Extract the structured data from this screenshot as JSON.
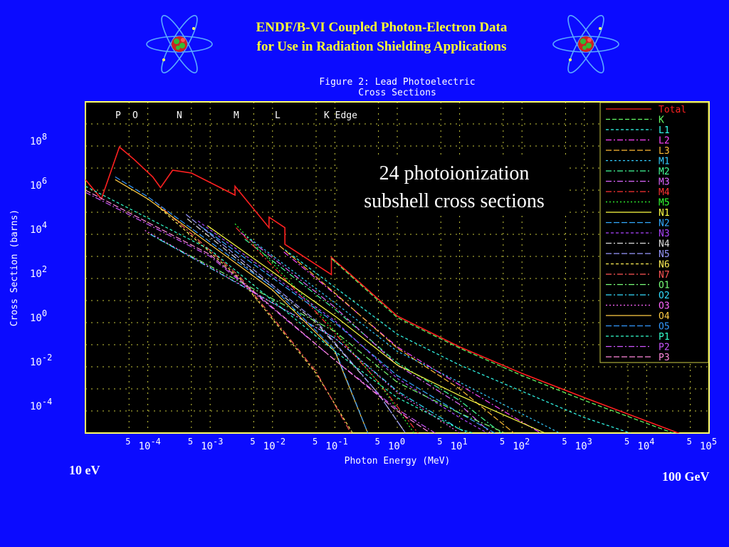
{
  "slide": {
    "title_line1": "ENDF/B-VI Coupled Photon-Electron Data",
    "title_line2": "for Use in Radiation Shielding Applications",
    "low_energy_label": "10 eV",
    "high_energy_label": "100 GeV",
    "annotation_line1": "24 photoionization",
    "annotation_line2": "subshell cross sections",
    "left_icon": "atom-icon",
    "right_icon": "atom-icon"
  },
  "colors": {
    "background": "#0b0bff",
    "plot_background": "#000000",
    "frame": "#ffff66",
    "title_text": "#ffff33",
    "chart_text": "#ffffff"
  },
  "chart_data": {
    "type": "line",
    "title_line1": "Figure 2: Lead Photoelectric",
    "title_line2": "Cross Sections",
    "xlabel": "Photon Energy (MeV)",
    "ylabel": "Cross Section (barns)",
    "x_scale": "log",
    "y_scale": "log",
    "xlim": [
      1e-05,
      100000
    ],
    "ylim": [
      1e-05,
      10000000000
    ],
    "x_tick_labels": [
      "10-4",
      "10-3",
      "10-2",
      "10-1",
      "100",
      "101",
      "102",
      "103",
      "104",
      "105"
    ],
    "x_minor_label": "5",
    "y_tick_labels": [
      "108",
      "106",
      "104",
      "102",
      "100",
      "10-2",
      "10-4"
    ],
    "grid": true,
    "legend_position": "top-right",
    "edge_labels": [
      "P",
      "O",
      "N",
      "M",
      "L",
      "K Edge"
    ],
    "series": [
      {
        "name": "Total",
        "color": "#ff2020",
        "dash": "solid",
        "points": [
          [
            1e-05,
            3000000
          ],
          [
            1.8e-05,
            400000
          ],
          [
            3.5e-05,
            90000000
          ],
          [
            6e-05,
            25000000
          ],
          [
            0.00012,
            4000000
          ],
          [
            0.00016,
            1300000
          ],
          [
            0.00025,
            8000000
          ],
          [
            0.0005,
            6000000
          ],
          [
            0.0025,
            600000
          ],
          [
            0.0025,
            1500000
          ],
          [
            0.0088,
            20000
          ],
          [
            0.0088,
            60000
          ],
          [
            0.0158,
            20000
          ],
          [
            0.0158,
            3500
          ],
          [
            0.088,
            150
          ],
          [
            0.088,
            900
          ],
          [
            1,
            2
          ],
          [
            10,
            0.08
          ],
          [
            100,
            0.005
          ],
          [
            1000,
            0.0004
          ],
          [
            100000,
            3e-06
          ]
        ]
      },
      {
        "name": "K",
        "color": "#66ff66",
        "dash": "6,3",
        "points": [
          [
            0.088,
            800
          ],
          [
            1,
            1.7
          ],
          [
            10,
            0.07
          ],
          [
            100,
            0.004
          ],
          [
            1000,
            0.0003
          ],
          [
            100000,
            2.5e-06
          ]
        ]
      },
      {
        "name": "L1",
        "color": "#33ffee",
        "dash": "4,3",
        "points": [
          [
            0.0158,
            2000
          ],
          [
            0.1,
            40
          ],
          [
            1,
            0.3
          ],
          [
            10,
            0.012
          ],
          [
            1000,
            5e-05
          ],
          [
            60000,
            1e-06
          ]
        ]
      },
      {
        "name": "L2",
        "color": "#ff44ff",
        "dash": "8,3,2,3",
        "points": [
          [
            0.0152,
            1600
          ],
          [
            0.1,
            20
          ],
          [
            1,
            0.08
          ],
          [
            10,
            0.0015
          ],
          [
            300,
            5e-06
          ]
        ]
      },
      {
        "name": "L3",
        "color": "#ffbb33",
        "dash": "8,3",
        "points": [
          [
            0.013,
            3000
          ],
          [
            0.1,
            22
          ],
          [
            1,
            0.07
          ],
          [
            10,
            0.001
          ],
          [
            150,
            2e-06
          ]
        ]
      },
      {
        "name": "M1",
        "color": "#33ccff",
        "dash": "3,3",
        "points": [
          [
            0.0039,
            8000
          ],
          [
            0.1,
            8
          ],
          [
            1,
            0.05
          ],
          [
            10,
            0.002
          ],
          [
            2000,
            1e-06
          ]
        ]
      },
      {
        "name": "M2",
        "color": "#44ff99",
        "dash": "8,3,2,3",
        "points": [
          [
            0.0036,
            6000
          ],
          [
            0.1,
            4
          ],
          [
            1,
            0.015
          ],
          [
            10,
            0.0003
          ],
          [
            80,
            3e-06
          ]
        ]
      },
      {
        "name": "M3",
        "color": "#dd66ff",
        "dash": "8,3,2,3",
        "points": [
          [
            0.0031,
            12000
          ],
          [
            0.1,
            5
          ],
          [
            1,
            0.012
          ],
          [
            10,
            0.0002
          ],
          [
            50,
            3e-06
          ]
        ]
      },
      {
        "name": "M4",
        "color": "#ff3333",
        "dash": "8,3,2,3",
        "points": [
          [
            0.0026,
            20000
          ],
          [
            0.05,
            3
          ],
          [
            0.5,
            0.002
          ],
          [
            3,
            3e-06
          ]
        ]
      },
      {
        "name": "M5",
        "color": "#33ff33",
        "dash": "2,3",
        "points": [
          [
            0.0025,
            30000
          ],
          [
            0.05,
            4
          ],
          [
            0.5,
            0.002
          ],
          [
            2.5,
            3e-06
          ]
        ]
      },
      {
        "name": "N1",
        "color": "#ffff44",
        "dash": "solid",
        "points": [
          [
            0.0009,
            25000
          ],
          [
            0.1,
            2
          ],
          [
            1,
            0.012
          ],
          [
            10,
            0.0005
          ],
          [
            1500,
            1e-06
          ]
        ]
      },
      {
        "name": "N2",
        "color": "#33aaff",
        "dash": "8,3",
        "points": [
          [
            0.00076,
            20000
          ],
          [
            0.1,
            1
          ],
          [
            1,
            0.004
          ],
          [
            10,
            8e-05
          ],
          [
            100,
            2e-06
          ]
        ]
      },
      {
        "name": "N3",
        "color": "#aa44ff",
        "dash": "4,3",
        "points": [
          [
            0.00064,
            40000
          ],
          [
            0.1,
            1.2
          ],
          [
            1,
            0.003
          ],
          [
            10,
            5e-05
          ],
          [
            60,
            3e-06
          ]
        ]
      },
      {
        "name": "N4",
        "color": "#dddddd",
        "dash": "8,3,2,3",
        "points": [
          [
            0.00043,
            50000
          ],
          [
            0.05,
            1
          ],
          [
            0.5,
            0.0006
          ],
          [
            2,
            2e-06
          ]
        ]
      },
      {
        "name": "N5",
        "color": "#9999ff",
        "dash": "8,3",
        "points": [
          [
            0.00041,
            80000
          ],
          [
            0.05,
            1.2
          ],
          [
            0.5,
            0.0006
          ],
          [
            2,
            2e-06
          ]
        ]
      },
      {
        "name": "N6",
        "color": "#ffee55",
        "dash": "4,3",
        "points": [
          [
            0.00014,
            200000
          ],
          [
            0.003,
            100
          ],
          [
            0.05,
            0.005
          ],
          [
            0.25,
            3e-06
          ]
        ]
      },
      {
        "name": "N7",
        "color": "#ff5555",
        "dash": "8,3,2,3",
        "points": [
          [
            0.00013,
            300000
          ],
          [
            0.003,
            120
          ],
          [
            0.05,
            0.006
          ],
          [
            0.23,
            3e-06
          ]
        ]
      },
      {
        "name": "O1",
        "color": "#77ff77",
        "dash": "8,3,2,3",
        "points": [
          [
            0.00015,
            6000
          ],
          [
            0.1,
            0.4
          ],
          [
            1,
            0.002
          ],
          [
            10,
            8e-05
          ],
          [
            200,
            2e-06
          ]
        ]
      },
      {
        "name": "O2",
        "color": "#33ddff",
        "dash": "8,3,2,3",
        "points": [
          [
            0.00011,
            10000
          ],
          [
            0.1,
            0.2
          ],
          [
            1,
            0.0008
          ],
          [
            10,
            1.5e-05
          ],
          [
            40,
            2e-06
          ]
        ]
      },
      {
        "name": "O3",
        "color": "#ff66ff",
        "dash": "2,3",
        "points": [
          [
            9e-05,
            15000
          ],
          [
            0.1,
            0.2
          ],
          [
            1,
            0.0007
          ],
          [
            10,
            1e-05
          ],
          [
            35,
            2e-06
          ]
        ]
      },
      {
        "name": "O4",
        "color": "#ffcc44",
        "dash": "solid",
        "points": [
          [
            3e-05,
            3000000
          ],
          [
            0.0001,
            400000
          ],
          [
            0.01,
            30
          ],
          [
            0.1,
            0.05
          ],
          [
            0.4,
            3e-06
          ]
        ]
      },
      {
        "name": "O5",
        "color": "#3399ff",
        "dash": "8,3",
        "points": [
          [
            3e-05,
            4000000
          ],
          [
            0.0001,
            500000
          ],
          [
            0.01,
            40
          ],
          [
            0.1,
            0.06
          ],
          [
            0.4,
            3e-06
          ]
        ]
      },
      {
        "name": "P1",
        "color": "#33ffcc",
        "dash": "4,3",
        "points": [
          [
            1e-05,
            1500000
          ],
          [
            0.001,
            2000
          ],
          [
            0.1,
            0.05
          ],
          [
            1,
            0.0004
          ],
          [
            10,
            1.5e-05
          ],
          [
            120,
            2e-06
          ]
        ]
      },
      {
        "name": "P2",
        "color": "#cc55ff",
        "dash": "8,3,2,3",
        "points": [
          [
            1e-05,
            800000
          ],
          [
            0.001,
            1000
          ],
          [
            0.1,
            0.02
          ],
          [
            1,
            0.00012
          ],
          [
            10,
            2e-06
          ]
        ]
      },
      {
        "name": "P3",
        "color": "#ff88dd",
        "dash": "8,3",
        "points": [
          [
            1e-05,
            1000000
          ],
          [
            0.001,
            1200
          ],
          [
            0.1,
            0.02
          ],
          [
            1,
            0.0001
          ],
          [
            8,
            2e-06
          ]
        ]
      }
    ]
  }
}
